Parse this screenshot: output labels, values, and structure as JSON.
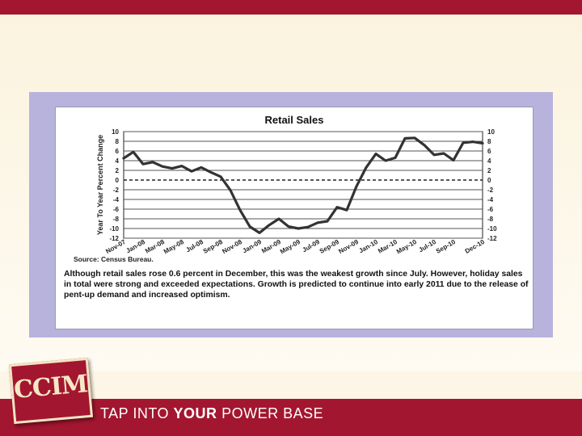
{
  "slide": {
    "tagline_pre": "TAP INTO",
    "tagline_bold": "YOUR",
    "tagline_post": "POWER BASE",
    "logo_text": "CCIM",
    "colors": {
      "brand_red": "#a3162f",
      "cream": "#fdf7e8",
      "frame_lavender": "#b7b3dc"
    }
  },
  "figure": {
    "source": "Source: Census Bureau.",
    "caption": "Although retail sales rose 0.6 percent in December, this was the weakest growth since July. However, holiday sales in total were strong and exceeded expectations. Growth is predicted to continue into early 2011 due to the release of pent-up demand and increased optimism."
  },
  "chart_data": {
    "type": "line",
    "title": "Retail Sales",
    "ylabel": "Year To Year Percent Change",
    "xlabel": "",
    "ylim": [
      -12,
      10
    ],
    "y_ticks": [
      10,
      8,
      6,
      4,
      2,
      0,
      -2,
      -4,
      -6,
      -8,
      -10,
      -12
    ],
    "y_ticks_right": [
      10,
      8,
      6,
      4,
      2,
      0,
      -2,
      -4,
      -6,
      -8,
      -10,
      -12
    ],
    "x_tick_labels": [
      "Nov-07",
      "Jan-08",
      "Mar-08",
      "May-08",
      "Jul-08",
      "Sep-08",
      "Nov-08",
      "Jan-09",
      "Mar-09",
      "May-09",
      "Jul-09",
      "Sep-09",
      "Nov-09",
      "Jan-10",
      "Mar-10",
      "May-10",
      "Jul-10",
      "Sep-10",
      "Dec-10"
    ],
    "grid": true,
    "zero_line_dashed": true,
    "series": [
      {
        "color": "#333333",
        "x": [
          "Nov-07",
          "Dec-07",
          "Jan-08",
          "Feb-08",
          "Mar-08",
          "Apr-08",
          "May-08",
          "Jun-08",
          "Jul-08",
          "Aug-08",
          "Sep-08",
          "Oct-08",
          "Nov-08",
          "Dec-08",
          "Jan-09",
          "Feb-09",
          "Mar-09",
          "Apr-09",
          "May-09",
          "Jun-09",
          "Jul-09",
          "Aug-09",
          "Sep-09",
          "Oct-09",
          "Nov-09",
          "Dec-09",
          "Jan-10",
          "Feb-10",
          "Mar-10",
          "Apr-10",
          "May-10",
          "Jun-10",
          "Jul-10",
          "Aug-10",
          "Sep-10",
          "Oct-10",
          "Nov-10",
          "Dec-10"
        ],
        "values": [
          4.5,
          5.8,
          3.3,
          3.7,
          2.8,
          2.4,
          2.9,
          1.8,
          2.6,
          1.6,
          0.7,
          -2.1,
          -6.2,
          -9.6,
          -10.9,
          -9.3,
          -8.0,
          -9.6,
          -10.0,
          -9.7,
          -8.8,
          -8.5,
          -5.6,
          -6.2,
          -1.3,
          2.6,
          5.4,
          4.0,
          4.6,
          8.6,
          8.7,
          7.2,
          5.2,
          5.5,
          4.1,
          7.7,
          7.9,
          7.6
        ]
      }
    ]
  }
}
